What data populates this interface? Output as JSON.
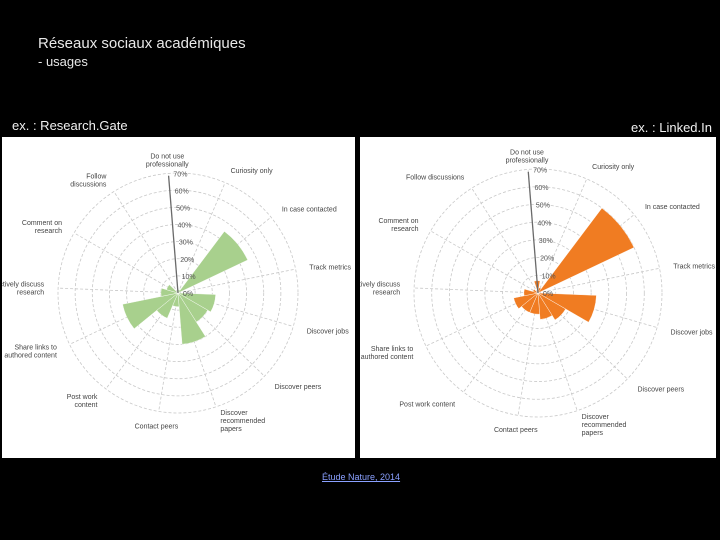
{
  "slide": {
    "title": "Réseaux sociaux académiques",
    "subtitle": "- usages",
    "left_label": "ex. : Research.Gate",
    "right_label": "ex. : Linked.In",
    "source": "Étude Nature, 2014"
  },
  "chart_data": [
    {
      "type": "polar-area",
      "title": "",
      "color": "#a8d08d",
      "rlim": [
        0,
        70
      ],
      "rticks": [
        "0%",
        "10%",
        "20%",
        "30%",
        "40%",
        "50%",
        "60%",
        "70%"
      ],
      "categories": [
        "Do not use professionally",
        "Curiosity only",
        "In case contacted",
        "Track metrics",
        "Discover jobs",
        "Discover peers",
        "Discover recommended papers",
        "Contact peers",
        "Post work content",
        "Share links to authored content",
        "Actively discuss research",
        "Comment on research",
        "Follow discussions"
      ],
      "category_labels": [
        "Do not use|professionally",
        "Curiosity only",
        "In case contacted",
        "Track metrics",
        "Discover jobs",
        "Discover peers",
        "Discover|recommended|papers",
        "Contact peers",
        "Post work|content",
        "Share links to|authored content",
        "Actively discuss|research",
        "Comment on|research",
        "Follow|discussions"
      ],
      "values": [
        2,
        2,
        45,
        1,
        22,
        20,
        30,
        8,
        16,
        33,
        10,
        7,
        1
      ]
    },
    {
      "type": "polar-area",
      "title": "",
      "color": "#f07c22",
      "rlim": [
        0,
        70
      ],
      "rticks": [
        "0%",
        "10%",
        "20%",
        "30%",
        "40%",
        "50%",
        "60%",
        "70%"
      ],
      "categories": [
        "Do not use professionally",
        "Curiosity only",
        "In case contacted",
        "Track metrics",
        "Discover jobs",
        "Discover peers",
        "Discover recommended papers",
        "Contact peers",
        "Post work content",
        "Share links to authored content",
        "Actively discuss research",
        "Comment on research",
        "Follow discussions"
      ],
      "category_labels": [
        "Do not use|professionally",
        "Curiosity only",
        "In case contacted",
        "Track metrics",
        "Discover jobs",
        "Discover peers",
        "Discover|recommended|papers",
        "Contact peers",
        "Post work content",
        "Share links to|authored content",
        "Actively discuss|research",
        "Comment on|research",
        "Follow discussions"
      ],
      "values": [
        7,
        3,
        60,
        1,
        33,
        18,
        15,
        12,
        12,
        14,
        8,
        3,
        1
      ]
    }
  ]
}
